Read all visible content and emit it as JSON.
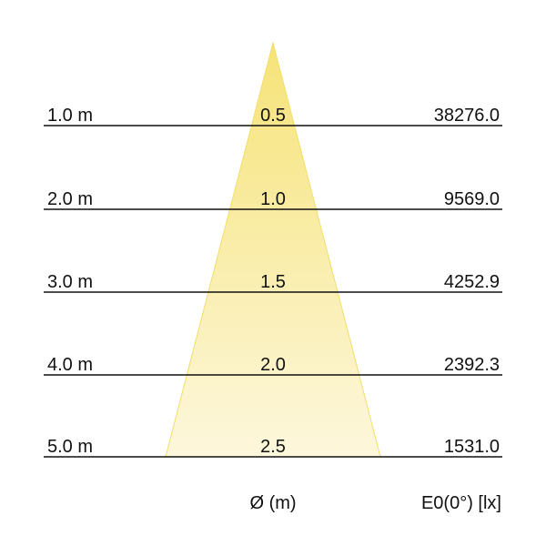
{
  "colors": {
    "cone_top": "#f6e378",
    "cone_bottom": "#fdf7dc",
    "cone_edge": "#f1df6a",
    "line": "#111111"
  },
  "rows": [
    {
      "distance": "1.0 m",
      "diameter": "0.5",
      "illuminance": "38276.0"
    },
    {
      "distance": "2.0 m",
      "diameter": "1.0",
      "illuminance": "9569.0"
    },
    {
      "distance": "3.0 m",
      "diameter": "1.5",
      "illuminance": "4252.9"
    },
    {
      "distance": "4.0 m",
      "diameter": "2.0",
      "illuminance": "2392.3"
    },
    {
      "distance": "5.0 m",
      "diameter": "2.5",
      "illuminance": "1531.0"
    }
  ],
  "footer": {
    "diameter_label": "Ø (m)",
    "illuminance_label": "E0(0°) [lx]"
  }
}
